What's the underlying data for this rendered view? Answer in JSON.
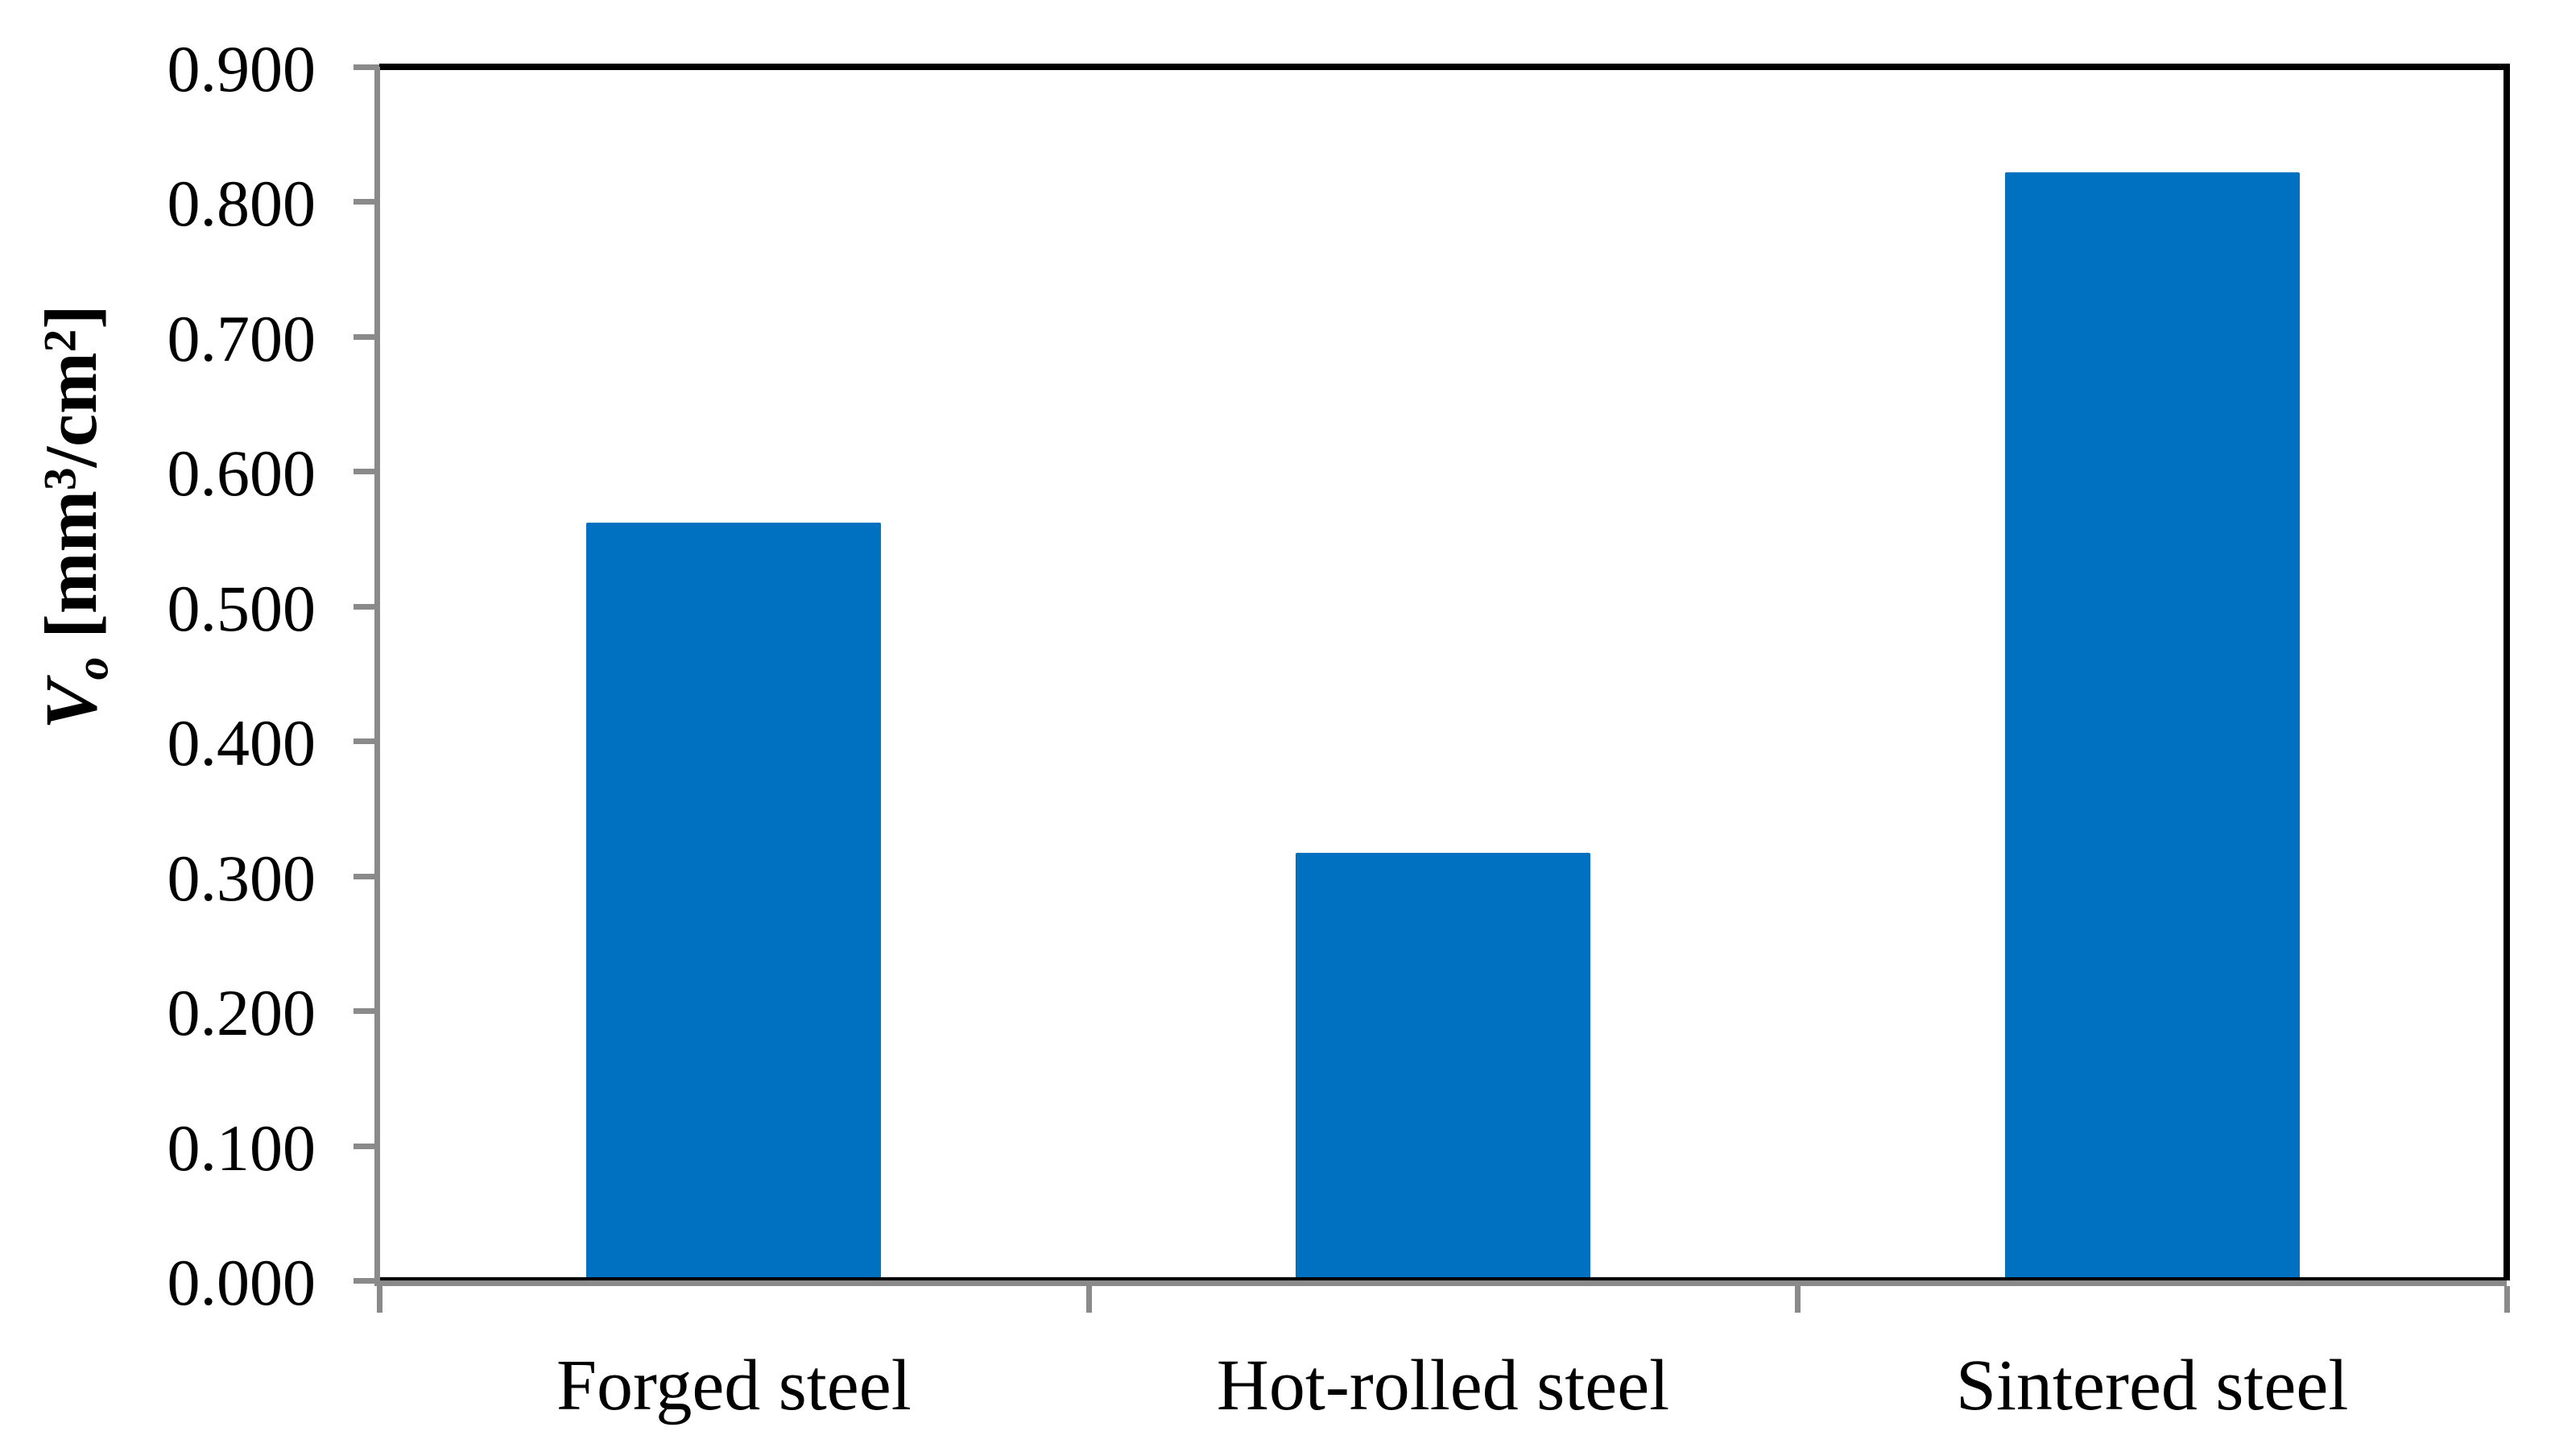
{
  "chart_data": {
    "type": "bar",
    "title": "",
    "categories": [
      "Forged steel",
      "Hot-rolled steel",
      "Sintered steel"
    ],
    "values": [
      0.562,
      0.317,
      0.822
    ],
    "series": [
      {
        "name": "Vo",
        "values": [
          0.562,
          0.317,
          0.822
        ]
      }
    ],
    "xlabel": "",
    "ylabel": "V_o [mm³/cm²]",
    "ylabel_parts": {
      "symbol": "V",
      "symbol_sub": "o",
      "unit_open": " [mm",
      "sup_3": "3",
      "unit_mid": "/cm",
      "sup_2": "2",
      "unit_close": "]"
    },
    "ylim": [
      0,
      0.9
    ],
    "y_tick_step": 0.1,
    "y_tick_labels": [
      "0.000",
      "0.100",
      "0.200",
      "0.300",
      "0.400",
      "0.500",
      "0.600",
      "0.700",
      "0.800",
      "0.900"
    ],
    "grid": "off",
    "legend": "none",
    "colors": {
      "bar": "#0070c0",
      "axis": "#8a8a8a",
      "frame": "#000000",
      "text": "#000000",
      "background": "#ffffff"
    }
  }
}
